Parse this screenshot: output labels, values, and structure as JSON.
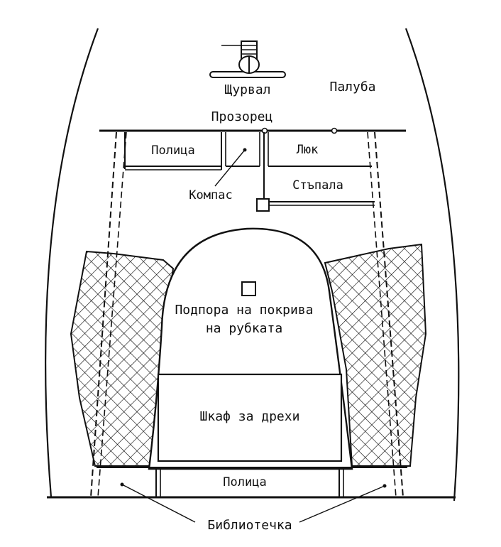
{
  "labels": {
    "wheel": "Щурвал",
    "deck": "Палуба",
    "window": "Прозорец",
    "shelf_top": "Полица",
    "hatch": "Люк",
    "compass": "Компас",
    "steps": "Стъпала",
    "roof_support_line1": "Подпора на покрива",
    "roof_support_line2": "на рубката",
    "wardrobe": "Шкаф за дрехи",
    "shelf_bottom": "Полица",
    "bookcase": "Библиотечка"
  }
}
